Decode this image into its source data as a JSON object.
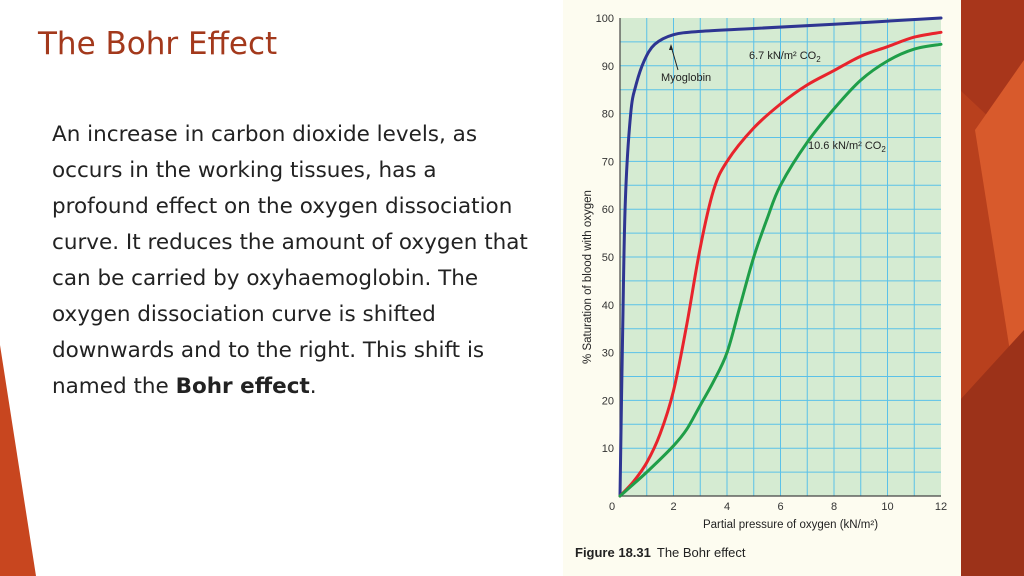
{
  "slide": {
    "title": "The Bohr Effect",
    "body_main": "An increase in carbon dioxide levels, as occurs in the working tissues, has a profound effect on the oxygen dissociation curve. It reduces the amount of oxygen that can be carried by oxyhaemoglobin. The oxygen dissociation curve is shifted downwards and to the right. This shift is named the ",
    "body_bold": "Bohr effect",
    "body_end": "."
  },
  "figure": {
    "caption_number": "Figure 18.31",
    "caption_text": "The Bohr effect"
  },
  "colors": {
    "title": "#a3391c",
    "accent_dark": "#a8361b",
    "accent_mid": "#c8461f",
    "accent_light": "#e0683a",
    "plot_bg": "#d5ebd2",
    "grid": "#5bc1e8",
    "myoglobin": "#2e3592",
    "low_co2": "#e8242c",
    "high_co2": "#1f9e48"
  },
  "chart_data": {
    "type": "line",
    "xlabel": "Partial pressure of oxygen (kN/m²)",
    "ylabel": "% Saturation of blood with oxygen",
    "xlim": [
      0,
      12
    ],
    "ylim": [
      0,
      100
    ],
    "x_ticks": [
      "0",
      "2",
      "4",
      "6",
      "8",
      "10",
      "12"
    ],
    "y_ticks": [
      "10",
      "20",
      "30",
      "40",
      "50",
      "60",
      "70",
      "80",
      "90",
      "100"
    ],
    "grid": true,
    "series": [
      {
        "name": "Myoglobin",
        "color": "#2e3592",
        "points": [
          [
            0,
            0
          ],
          [
            0.1,
            35
          ],
          [
            0.2,
            62
          ],
          [
            0.4,
            80
          ],
          [
            0.6,
            86
          ],
          [
            0.9,
            91
          ],
          [
            1.3,
            94.5
          ],
          [
            2,
            96.5
          ],
          [
            3,
            97.2
          ],
          [
            5,
            97.8
          ],
          [
            8,
            98.7
          ],
          [
            12,
            100
          ]
        ]
      },
      {
        "name": "6.7 kN/m² CO₂",
        "color": "#e8242c",
        "points": [
          [
            0,
            0
          ],
          [
            0.5,
            3
          ],
          [
            1,
            7
          ],
          [
            1.5,
            13
          ],
          [
            2,
            22
          ],
          [
            2.5,
            36
          ],
          [
            3,
            52
          ],
          [
            3.5,
            64
          ],
          [
            4,
            70
          ],
          [
            5,
            77
          ],
          [
            6,
            82
          ],
          [
            7,
            86
          ],
          [
            8,
            89
          ],
          [
            9,
            92
          ],
          [
            10,
            94
          ],
          [
            11,
            96
          ],
          [
            12,
            97
          ]
        ]
      },
      {
        "name": "10.6 kN/m² CO₂",
        "color": "#1f9e48",
        "points": [
          [
            0,
            0
          ],
          [
            1,
            5
          ],
          [
            2,
            10.5
          ],
          [
            2.5,
            14
          ],
          [
            3,
            19
          ],
          [
            3.5,
            24
          ],
          [
            4,
            30
          ],
          [
            4.5,
            40
          ],
          [
            5,
            50
          ],
          [
            5.5,
            58
          ],
          [
            6,
            65
          ],
          [
            7,
            74
          ],
          [
            8,
            81
          ],
          [
            9,
            87
          ],
          [
            10,
            91
          ],
          [
            11,
            93.5
          ],
          [
            12,
            94.5
          ]
        ]
      }
    ],
    "annotations": [
      {
        "name": "Myoglobin",
        "text": "Myoglobin"
      },
      {
        "name": "low-co2",
        "text": "6.7 kN/m² CO",
        "sub": "2"
      },
      {
        "name": "high-co2",
        "text": "10.6 kN/m² CO",
        "sub": "2"
      }
    ]
  }
}
